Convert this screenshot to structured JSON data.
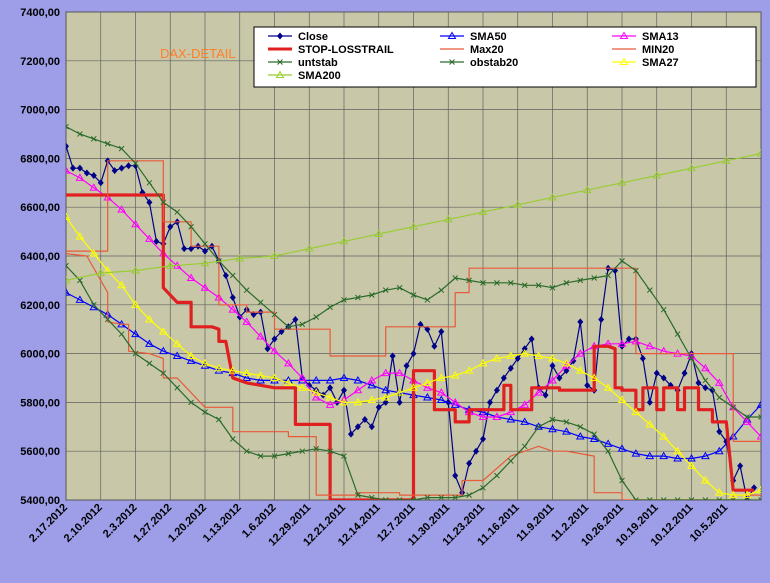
{
  "chart_data": {
    "type": "line",
    "title": "DAX-DETAIL",
    "colors": {
      "figure_bg": "#9d9de8",
      "plot_bg": "#c8c8a8",
      "grid": "#606060",
      "title": "#ff7f2a"
    },
    "ylim": [
      5400,
      7400
    ],
    "yticks": [
      "5400,00",
      "5600,00",
      "5800,00",
      "6000,00",
      "6200,00",
      "6400,00",
      "6600,00",
      "6800,00",
      "7000,00",
      "7200,00",
      "7400,00"
    ],
    "ytick_values": [
      5400,
      5600,
      5800,
      6000,
      6200,
      6400,
      6600,
      6800,
      7000,
      7200,
      7400
    ],
    "xlim": [
      0,
      100
    ],
    "grid": true,
    "legend_position": "top",
    "xticks": [
      "2.17.2012",
      "2.10.2012",
      "2.3.2012",
      "1.27.2012",
      "1.20.2012",
      "1.13.2012",
      "1.6.2012",
      "12.29.2011",
      "12.21.2011",
      "12.14.2011",
      "12.7.2011",
      "11.30.2011",
      "11.23.2011",
      "11.16.2011",
      "11.9.2011",
      "11.2.2011",
      "10.26.2011",
      "10.19.2011",
      "10.12.2011",
      "10.5.2011"
    ],
    "series": [
      {
        "name": "Close",
        "color": "#00008b",
        "marker": "diamond",
        "width": 1.2,
        "x": [
          0,
          1,
          2,
          3,
          4,
          5,
          6,
          7,
          8,
          9,
          10,
          11,
          12,
          13,
          14,
          15,
          16,
          17,
          18,
          19,
          20,
          21,
          22,
          23,
          24,
          25,
          26,
          27,
          28,
          29,
          30,
          31,
          32,
          33,
          34,
          35,
          36,
          37,
          38,
          39,
          40,
          41,
          42,
          43,
          44,
          45,
          46,
          47,
          48,
          49,
          50,
          51,
          52,
          53,
          54,
          55,
          56,
          57,
          58,
          59,
          60,
          61,
          62,
          63,
          64,
          65,
          66,
          67,
          68,
          69,
          70,
          71,
          72,
          73,
          74,
          75,
          76,
          77,
          78,
          79,
          80,
          81,
          82,
          83,
          84,
          85,
          86,
          87,
          88,
          89,
          90,
          91,
          92,
          93,
          94,
          95,
          96,
          97,
          98,
          99
        ],
        "y": [
          6850,
          6760,
          6760,
          6740,
          6730,
          6700,
          6790,
          6750,
          6760,
          6770,
          6770,
          6660,
          6620,
          6460,
          6450,
          6520,
          6540,
          6430,
          6430,
          6440,
          6420,
          6440,
          6380,
          6320,
          6230,
          6150,
          6180,
          6160,
          6170,
          6020,
          6060,
          6090,
          6110,
          6140,
          5900,
          5870,
          5850,
          5830,
          5860,
          5800,
          5850,
          5670,
          5700,
          5730,
          5700,
          5780,
          5800,
          5990,
          5800,
          5950,
          6000,
          6120,
          6100,
          6030,
          6090,
          5800,
          5500,
          5430,
          5550,
          5600,
          5650,
          5800,
          5850,
          5900,
          5940,
          5980,
          6020,
          6060,
          5860,
          5830,
          5950,
          5900,
          5930,
          5970,
          6130,
          5870,
          5850,
          6140,
          6350,
          6340,
          6030,
          6060,
          6060,
          5980,
          5800,
          5920,
          5900,
          5870,
          5850,
          5920,
          6000,
          5880,
          5860,
          5850,
          5680,
          5640,
          5480,
          5540,
          5400,
          5450
        ]
      },
      {
        "name": "SMA50",
        "color": "#0000ff",
        "marker": "triangle",
        "width": 1.2,
        "x": [
          0,
          2,
          4,
          6,
          8,
          10,
          12,
          14,
          16,
          18,
          20,
          22,
          24,
          26,
          28,
          30,
          32,
          34,
          36,
          38,
          40,
          42,
          44,
          46,
          48,
          50,
          52,
          54,
          56,
          58,
          60,
          62,
          64,
          66,
          68,
          70,
          72,
          74,
          76,
          78,
          80,
          82,
          84,
          86,
          88,
          90,
          92,
          94,
          96,
          98,
          100
        ],
        "y": [
          6250,
          6220,
          6190,
          6160,
          6120,
          6080,
          6040,
          6010,
          5990,
          5970,
          5950,
          5930,
          5920,
          5900,
          5890,
          5890,
          5890,
          5890,
          5890,
          5890,
          5900,
          5890,
          5870,
          5850,
          5840,
          5830,
          5820,
          5810,
          5790,
          5770,
          5760,
          5740,
          5730,
          5720,
          5700,
          5690,
          5680,
          5660,
          5650,
          5630,
          5610,
          5590,
          5580,
          5580,
          5570,
          5570,
          5580,
          5600,
          5660,
          5730,
          5790
        ]
      },
      {
        "name": "SMA13",
        "color": "#ff00ff",
        "marker": "triangle",
        "width": 1.2,
        "x": [
          0,
          2,
          4,
          6,
          8,
          10,
          12,
          14,
          16,
          18,
          20,
          22,
          24,
          26,
          28,
          30,
          32,
          34,
          36,
          38,
          40,
          42,
          44,
          46,
          48,
          50,
          52,
          54,
          56,
          58,
          60,
          62,
          64,
          66,
          68,
          70,
          72,
          74,
          76,
          78,
          80,
          82,
          84,
          86,
          88,
          90,
          92,
          94,
          96,
          98,
          100
        ],
        "y": [
          6750,
          6720,
          6680,
          6640,
          6590,
          6530,
          6470,
          6410,
          6360,
          6310,
          6270,
          6230,
          6180,
          6130,
          6070,
          6010,
          5960,
          5900,
          5820,
          5790,
          5810,
          5850,
          5890,
          5920,
          5920,
          5890,
          5860,
          5840,
          5800,
          5760,
          5740,
          5740,
          5760,
          5790,
          5840,
          5890,
          5950,
          6000,
          6030,
          6040,
          6040,
          6050,
          6030,
          6010,
          6000,
          5990,
          5940,
          5880,
          5780,
          5720,
          5660
        ]
      },
      {
        "name": "STOP-LOSSTRAIL",
        "color": "#e02020",
        "width": 3.2,
        "x": [
          0,
          5,
          10,
          14,
          14,
          16,
          18,
          18,
          20,
          21,
          22,
          22,
          23,
          24,
          26,
          28,
          30,
          32,
          33,
          33,
          34,
          35,
          36,
          37,
          38,
          38,
          50,
          50,
          52,
          53,
          53,
          56,
          56,
          58,
          58,
          62,
          63,
          63,
          64,
          64,
          66,
          67,
          67,
          70,
          71,
          71,
          75,
          76,
          76,
          78,
          79,
          79,
          80,
          80,
          82,
          82,
          83,
          83,
          85,
          85,
          86,
          86,
          88,
          88,
          89,
          89,
          91,
          91,
          93,
          93,
          95,
          96,
          96,
          99,
          99
        ],
        "y": [
          6650,
          6650,
          6650,
          6650,
          6270,
          6210,
          6210,
          6110,
          6110,
          6110,
          6100,
          6050,
          6050,
          5900,
          5880,
          5870,
          5860,
          5860,
          5860,
          5710,
          5710,
          5710,
          5710,
          5710,
          5710,
          5400,
          5400,
          5930,
          5930,
          5930,
          5770,
          5770,
          5720,
          5720,
          5770,
          5770,
          5770,
          5870,
          5870,
          5770,
          5770,
          5770,
          5860,
          5860,
          5860,
          5850,
          5850,
          5850,
          6030,
          6030,
          6020,
          5860,
          5860,
          5850,
          5850,
          5770,
          5770,
          5860,
          5860,
          5770,
          5770,
          5860,
          5860,
          5770,
          5770,
          5860,
          5860,
          5770,
          5770,
          5720,
          5720,
          5440,
          5440,
          5440,
          5440
        ]
      },
      {
        "name": "Max20",
        "color": "#e85a3a",
        "width": 1.2,
        "x": [
          0,
          0,
          2,
          2,
          6,
          6,
          10,
          10,
          14,
          14,
          18,
          18,
          22,
          22,
          26,
          26,
          30,
          30,
          34,
          34,
          38,
          38,
          46,
          46,
          50,
          50,
          56,
          56,
          58,
          58,
          66,
          66,
          70,
          70,
          76,
          76,
          82,
          82,
          86,
          86,
          92,
          92,
          96,
          96,
          100
        ],
        "y": [
          6420,
          6420,
          6420,
          6420,
          6420,
          6790,
          6790,
          6790,
          6790,
          6540,
          6540,
          6440,
          6440,
          6200,
          6200,
          6170,
          6170,
          6100,
          6100,
          6100,
          6100,
          5990,
          5990,
          6110,
          6110,
          6110,
          6110,
          6250,
          6250,
          6350,
          6350,
          6350,
          6350,
          6350,
          6350,
          6350,
          6350,
          6000,
          6000,
          6000,
          6000,
          6000,
          6000,
          5640,
          5640
        ]
      },
      {
        "name": "MIN20",
        "color": "#e85a3a",
        "width": 1.2,
        "x": [
          0,
          3,
          6,
          6,
          8,
          9,
          9,
          12,
          14,
          14,
          16,
          20,
          20,
          24,
          24,
          28,
          32,
          32,
          34,
          36,
          36,
          42,
          42,
          46,
          48,
          48,
          56,
          57,
          57,
          60,
          64,
          64,
          68,
          70,
          72,
          74,
          76,
          76,
          78,
          80,
          80,
          82,
          86,
          90,
          94,
          96,
          96,
          100
        ],
        "y": [
          6410,
          6400,
          6250,
          6130,
          6120,
          6120,
          6010,
          6000,
          5980,
          5900,
          5900,
          5780,
          5780,
          5780,
          5680,
          5680,
          5680,
          5660,
          5660,
          5660,
          5420,
          5420,
          5430,
          5430,
          5430,
          5420,
          5420,
          5420,
          5480,
          5480,
          5580,
          5580,
          5620,
          5600,
          5600,
          5590,
          5580,
          5430,
          5430,
          5430,
          5400,
          5400,
          5400,
          5400,
          5400,
          5400,
          5420,
          5420
        ]
      },
      {
        "name": "untstab",
        "color": "#2a6a2a",
        "marker": "x",
        "width": 1.2,
        "x": [
          0,
          2,
          4,
          6,
          8,
          10,
          12,
          14,
          16,
          18,
          20,
          22,
          24,
          26,
          28,
          30,
          32,
          34,
          36,
          38,
          40,
          42,
          44,
          46,
          48,
          50,
          52,
          54,
          56,
          58,
          60,
          62,
          64,
          66,
          68,
          70,
          72,
          74,
          76,
          78,
          80,
          82,
          84,
          86,
          88,
          90,
          92,
          94,
          96,
          98,
          100
        ],
        "y": [
          6360,
          6300,
          6200,
          6140,
          6080,
          6000,
          5960,
          5920,
          5860,
          5800,
          5760,
          5730,
          5650,
          5600,
          5580,
          5580,
          5590,
          5600,
          5610,
          5600,
          5580,
          5420,
          5410,
          5400,
          5400,
          5400,
          5410,
          5410,
          5410,
          5420,
          5450,
          5500,
          5560,
          5620,
          5700,
          5730,
          5720,
          5700,
          5670,
          5600,
          5480,
          5400,
          5400,
          5400,
          5400,
          5400,
          5400,
          5400,
          5400,
          5400,
          5400
        ]
      },
      {
        "name": "obstab20",
        "color": "#2a6a2a",
        "marker": "x",
        "width": 1.2,
        "x": [
          0,
          2,
          4,
          6,
          8,
          10,
          12,
          14,
          16,
          18,
          20,
          22,
          24,
          26,
          28,
          30,
          32,
          34,
          36,
          38,
          40,
          42,
          44,
          46,
          48,
          50,
          52,
          54,
          56,
          58,
          60,
          62,
          64,
          66,
          68,
          70,
          72,
          74,
          76,
          78,
          80,
          82,
          84,
          86,
          88,
          90,
          92,
          94,
          96,
          98,
          100
        ],
        "y": [
          6930,
          6900,
          6880,
          6860,
          6840,
          6780,
          6700,
          6620,
          6580,
          6520,
          6450,
          6380,
          6320,
          6260,
          6210,
          6160,
          6110,
          6120,
          6150,
          6190,
          6220,
          6230,
          6240,
          6260,
          6270,
          6240,
          6220,
          6260,
          6310,
          6300,
          6290,
          6290,
          6290,
          6280,
          6280,
          6270,
          6290,
          6300,
          6310,
          6320,
          6380,
          6340,
          6260,
          6180,
          6080,
          5980,
          5890,
          5820,
          5780,
          5740,
          5740
        ]
      },
      {
        "name": "SMA27",
        "color": "#ffff00",
        "marker": "triangle",
        "width": 1.2,
        "x": [
          0,
          2,
          4,
          6,
          8,
          10,
          12,
          14,
          16,
          18,
          20,
          22,
          24,
          26,
          28,
          30,
          32,
          34,
          36,
          38,
          40,
          42,
          44,
          46,
          48,
          50,
          52,
          54,
          56,
          58,
          60,
          62,
          64,
          66,
          68,
          70,
          72,
          74,
          76,
          78,
          80,
          82,
          84,
          86,
          88,
          90,
          92,
          94,
          96,
          98,
          100
        ],
        "y": [
          6560,
          6480,
          6410,
          6340,
          6280,
          6200,
          6140,
          6090,
          6040,
          5990,
          5960,
          5940,
          5930,
          5920,
          5910,
          5900,
          5880,
          5860,
          5840,
          5820,
          5800,
          5800,
          5810,
          5820,
          5840,
          5860,
          5880,
          5900,
          5910,
          5930,
          5960,
          5980,
          5990,
          6000,
          5990,
          5980,
          5960,
          5930,
          5900,
          5860,
          5810,
          5760,
          5710,
          5660,
          5600,
          5540,
          5480,
          5430,
          5420,
          5420,
          5440
        ]
      },
      {
        "name": "SMA200",
        "color": "#99cc33",
        "marker": "triangle",
        "width": 1.2,
        "x": [
          0,
          5,
          10,
          15,
          20,
          25,
          30,
          35,
          40,
          45,
          50,
          55,
          60,
          65,
          70,
          75,
          80,
          85,
          90,
          95,
          100
        ],
        "y": [
          6300,
          6330,
          6340,
          6360,
          6370,
          6390,
          6400,
          6430,
          6460,
          6490,
          6520,
          6550,
          6580,
          6610,
          6640,
          6670,
          6700,
          6730,
          6760,
          6790,
          6820
        ]
      }
    ]
  }
}
